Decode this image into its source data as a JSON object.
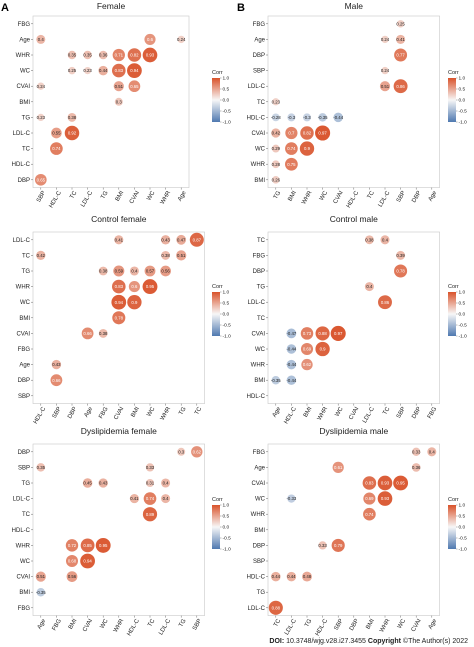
{
  "figure": {
    "panel_letters": [
      "A",
      "B"
    ],
    "legend": {
      "title": "Corr",
      "ticks": [
        "1.0",
        "0.5",
        "0.0",
        "-0.5",
        "-1.0"
      ]
    },
    "colors": {
      "positive": "#d9532b",
      "neutral": "#f7f7f7",
      "negative": "#4f79b0"
    },
    "footer": {
      "doi_label": "DOI:",
      "doi": "10.3748/wjg.v28.i27.3455",
      "copyright_label": "Copyright",
      "copyright": "©The Author(s) 2022"
    }
  },
  "chart_data": [
    {
      "type": "heatmap",
      "title": "Female",
      "rows": [
        "FBG",
        "Age",
        "WHR",
        "WC",
        "CVAI",
        "BMI",
        "TG",
        "LDL-C",
        "TC",
        "HDL-C",
        "DBP"
      ],
      "cols": [
        "SBP",
        "HDL-C",
        "TC",
        "LDL-C",
        "TG",
        "BMI",
        "CVAI",
        "WC",
        "WHR",
        "Age"
      ],
      "cells": [
        [
          1,
          0,
          0.4
        ],
        [
          1,
          7,
          0.6
        ],
        [
          1,
          9,
          0.24
        ],
        [
          2,
          2,
          0.35
        ],
        [
          2,
          3,
          0.35
        ],
        [
          2,
          4,
          0.36
        ],
        [
          2,
          5,
          0.71
        ],
        [
          2,
          6,
          0.82
        ],
        [
          2,
          7,
          0.93
        ],
        [
          3,
          2,
          0.25
        ],
        [
          3,
          3,
          0.23
        ],
        [
          3,
          4,
          0.44
        ],
        [
          3,
          5,
          0.83
        ],
        [
          3,
          6,
          0.94
        ],
        [
          4,
          0,
          0.24
        ],
        [
          4,
          5,
          0.51
        ],
        [
          4,
          6,
          0.65
        ],
        [
          5,
          5,
          0.3
        ],
        [
          6,
          0,
          0.23
        ],
        [
          6,
          2,
          0.38
        ],
        [
          7,
          1,
          0.55
        ],
        [
          7,
          2,
          0.92
        ],
        [
          8,
          1,
          0.74
        ],
        [
          10,
          0,
          0.65
        ]
      ]
    },
    {
      "type": "heatmap",
      "title": "Male",
      "rows": [
        "FBG",
        "Age",
        "DBP",
        "SBP",
        "LDL-C",
        "TC",
        "HDL-C",
        "CVAI",
        "WC",
        "WHR",
        "BMI"
      ],
      "cols": [
        "TG",
        "BMI",
        "WHR",
        "WC",
        "CVAI",
        "HDL-C",
        "TC",
        "LDL-C",
        "SBP",
        "DBP",
        "Age"
      ],
      "cells": [
        [
          0,
          8,
          0.25
        ],
        [
          1,
          7,
          0.24
        ],
        [
          1,
          8,
          0.41
        ],
        [
          2,
          8,
          0.77
        ],
        [
          3,
          7,
          0.24
        ],
        [
          4,
          7,
          0.51
        ],
        [
          4,
          8,
          0.86
        ],
        [
          5,
          0,
          0.23
        ],
        [
          6,
          0,
          -0.28
        ],
        [
          6,
          1,
          -0.3
        ],
        [
          6,
          2,
          -0.3
        ],
        [
          6,
          3,
          -0.35
        ],
        [
          6,
          4,
          -0.44
        ],
        [
          7,
          0,
          0.42
        ],
        [
          7,
          1,
          0.7
        ],
        [
          7,
          2,
          0.82
        ],
        [
          7,
          3,
          0.97
        ],
        [
          8,
          0,
          0.29
        ],
        [
          8,
          1,
          0.74
        ],
        [
          8,
          2,
          0.9
        ],
        [
          9,
          0,
          0.28
        ],
        [
          9,
          1,
          0.75
        ],
        [
          10,
          0,
          0.26
        ]
      ]
    },
    {
      "type": "heatmap",
      "title": "Control female",
      "rows": [
        "LDL-C",
        "TC",
        "TG",
        "WHR",
        "WC",
        "BMI",
        "CVAI",
        "FBG",
        "Age",
        "DBP",
        "SBP"
      ],
      "cols": [
        "HDL-C",
        "SBP",
        "DBP",
        "Age",
        "FBG",
        "CVAI",
        "BMI",
        "WC",
        "WHR",
        "TG",
        "TC"
      ],
      "cells": [
        [
          0,
          5,
          0.41
        ],
        [
          0,
          8,
          0.43
        ],
        [
          0,
          9,
          0.47
        ],
        [
          0,
          10,
          0.87
        ],
        [
          1,
          0,
          0.42
        ],
        [
          1,
          8,
          0.38
        ],
        [
          1,
          9,
          0.51
        ],
        [
          2,
          4,
          0.38
        ],
        [
          2,
          5,
          0.59
        ],
        [
          2,
          6,
          0.4
        ],
        [
          2,
          7,
          0.57
        ],
        [
          2,
          8,
          0.56
        ],
        [
          3,
          5,
          0.83
        ],
        [
          3,
          6,
          0.6
        ],
        [
          3,
          7,
          0.95
        ],
        [
          4,
          5,
          0.94
        ],
        [
          4,
          6,
          0.9
        ],
        [
          5,
          5,
          0.78
        ],
        [
          6,
          3,
          0.66
        ],
        [
          6,
          4,
          0.38
        ],
        [
          8,
          1,
          0.43
        ],
        [
          9,
          1,
          0.66
        ]
      ]
    },
    {
      "type": "heatmap",
      "title": "Control male",
      "rows": [
        "TC",
        "FBG",
        "DBP",
        "TG",
        "LDL-C",
        "TC",
        "CVAI",
        "WC",
        "WHR",
        "BMI",
        "HDL-C"
      ],
      "cols": [
        "Age",
        "HDL-C",
        "BMI",
        "WHR",
        "WC",
        "CVAI",
        "LDL-C",
        "TC",
        "SBP",
        "DBP",
        "FBG"
      ],
      "cells": [
        [
          0,
          6,
          0.38
        ],
        [
          0,
          7,
          0.4
        ],
        [
          1,
          8,
          0.39
        ],
        [
          2,
          8,
          0.78
        ],
        [
          3,
          6,
          0.4
        ],
        [
          4,
          7,
          0.86
        ],
        [
          6,
          1,
          -0.47
        ],
        [
          6,
          2,
          0.73
        ],
        [
          6,
          3,
          0.88
        ],
        [
          6,
          4,
          0.97
        ],
        [
          7,
          1,
          -0.44
        ],
        [
          7,
          2,
          0.69
        ],
        [
          7,
          3,
          0.9
        ],
        [
          8,
          1,
          -0.44
        ],
        [
          8,
          2,
          0.62
        ],
        [
          9,
          0,
          -0.35
        ],
        [
          9,
          1,
          -0.44
        ]
      ]
    },
    {
      "type": "heatmap",
      "title": "Dyslipidemia female",
      "rows": [
        "DBP",
        "SBP",
        "TG",
        "LDL-C",
        "TC",
        "HDL-C",
        "WHR",
        "WC",
        "CVAI",
        "BMI",
        "FBG"
      ],
      "cols": [
        "Age",
        "FBG",
        "BMI",
        "CVAI",
        "WC",
        "WHR",
        "HDL-C",
        "TC",
        "LDL-C",
        "TG",
        "SBP"
      ],
      "cells": [
        [
          0,
          9,
          0.3
        ],
        [
          0,
          10,
          0.62
        ],
        [
          1,
          0,
          0.35
        ],
        [
          1,
          7,
          0.33
        ],
        [
          2,
          3,
          0.45
        ],
        [
          2,
          4,
          0.43
        ],
        [
          2,
          7,
          0.31
        ],
        [
          2,
          8,
          0.4
        ],
        [
          3,
          6,
          0.41
        ],
        [
          3,
          7,
          0.74
        ],
        [
          3,
          8,
          0.4
        ],
        [
          4,
          7,
          0.89
        ],
        [
          6,
          2,
          0.72
        ],
        [
          6,
          3,
          0.85
        ],
        [
          6,
          4,
          0.95
        ],
        [
          7,
          2,
          0.68
        ],
        [
          7,
          3,
          0.94
        ],
        [
          8,
          0,
          0.51
        ],
        [
          8,
          2,
          0.56
        ],
        [
          9,
          0,
          -0.35
        ]
      ]
    },
    {
      "type": "heatmap",
      "title": "Dyslipidemia male",
      "rows": [
        "FBG",
        "Age",
        "CVAI",
        "WC",
        "WHR",
        "BMI",
        "DBP",
        "SBP",
        "HDL-C",
        "TG",
        "LDL-C"
      ],
      "cols": [
        "TC",
        "LDL-C",
        "TG",
        "HDL-C",
        "SBP",
        "DBP",
        "BMI",
        "WHR",
        "WC",
        "CVAI",
        "Age"
      ],
      "cells": [
        [
          0,
          9,
          0.33
        ],
        [
          0,
          10,
          0.4
        ],
        [
          1,
          4,
          0.61
        ],
        [
          1,
          9,
          0.36
        ],
        [
          2,
          6,
          0.83
        ],
        [
          2,
          7,
          0.93
        ],
        [
          2,
          8,
          0.95
        ],
        [
          3,
          1,
          -0.33
        ],
        [
          3,
          6,
          0.69
        ],
        [
          3,
          7,
          0.93
        ],
        [
          4,
          6,
          0.74
        ],
        [
          6,
          3,
          0.33
        ],
        [
          6,
          4,
          0.79
        ],
        [
          8,
          0,
          0.44
        ],
        [
          8,
          1,
          0.44
        ],
        [
          8,
          2,
          0.48
        ],
        [
          10,
          0,
          0.88
        ]
      ]
    }
  ]
}
